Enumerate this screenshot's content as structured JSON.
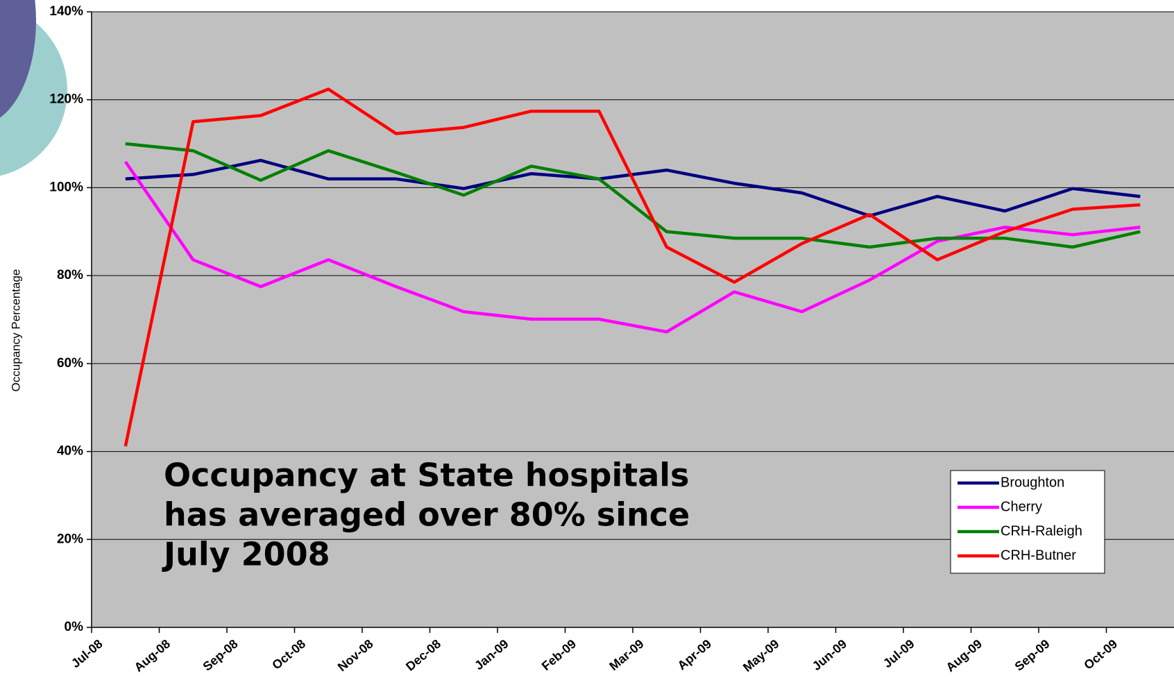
{
  "chart_data": {
    "type": "line",
    "y_label": "Occupancy Percentage",
    "annotation": [
      "Occupancy at State hospitals",
      "has averaged over 80% since",
      "July 2008"
    ],
    "categories": [
      "Jul-08",
      "Aug-08",
      "Sep-08",
      "Oct-08",
      "Nov-08",
      "Dec-08",
      "Jan-09",
      "Feb-09",
      "Mar-09",
      "Apr-09",
      "May-09",
      "Jun-09",
      "Jul-09",
      "Aug-09",
      "Sep-09",
      "Oct-09"
    ],
    "series": [
      {
        "name": "Broughton",
        "color": "#000080",
        "values": [
          102,
          103,
          106.2,
          102,
          102,
          99.8,
          103.2,
          102,
          104,
          101,
          98.8,
          93.6,
          98,
          94.7,
          99.8,
          98
        ]
      },
      {
        "name": "Cherry",
        "color": "#ff00ff",
        "values": [
          105.9,
          83.6,
          77.5,
          83.6,
          77.5,
          71.8,
          70.1,
          70.1,
          67.2,
          76.3,
          71.8,
          79,
          87.8,
          91,
          89.3,
          91
        ]
      },
      {
        "name": "CRH-Raleigh",
        "color": "#008000",
        "values": [
          110,
          108.4,
          101.7,
          108.4,
          103.5,
          98.3,
          104.9,
          102,
          90,
          88.5,
          88.5,
          86.5,
          88.5,
          88.5,
          86.5,
          90
        ]
      },
      {
        "name": "CRH-Butner",
        "color": "#ff0000",
        "values": [
          41.2,
          115,
          116.4,
          122.4,
          112.3,
          113.7,
          117.4,
          117.4,
          86.5,
          78.5,
          87.3,
          93.9,
          83.6,
          90,
          95.1,
          96.1
        ]
      }
    ],
    "ylim": [
      0,
      140
    ],
    "yticks": [
      {
        "value": 0,
        "label": "0%"
      },
      {
        "value": 20,
        "label": "20%"
      },
      {
        "value": 40,
        "label": "40%"
      },
      {
        "value": 60,
        "label": "60%"
      },
      {
        "value": 80,
        "label": "80%"
      },
      {
        "value": 100,
        "label": "100%"
      },
      {
        "value": 120,
        "label": "120%"
      },
      {
        "value": 140,
        "label": "140%"
      }
    ],
    "grid": true,
    "legend": "lower right",
    "plot_background": "#c0c0c0"
  }
}
